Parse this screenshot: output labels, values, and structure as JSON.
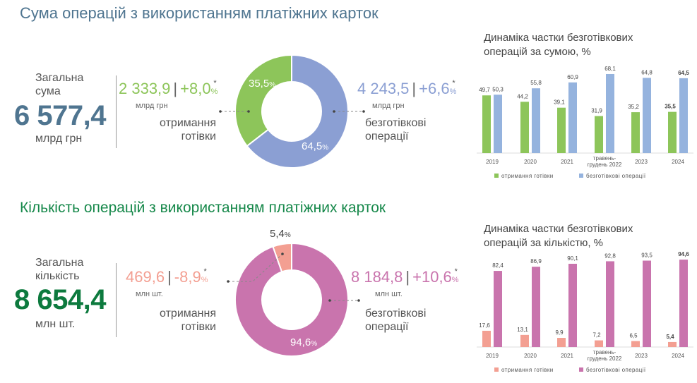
{
  "sum_section": {
    "title": "Сума операцій з використанням платіжних карток",
    "total_label_1": "Загальна",
    "total_label_2": "сума",
    "total_value": "6 577,4",
    "total_unit": "млрд грн",
    "cash": {
      "value": "2 333,9",
      "change": "+8,0",
      "pct": "%",
      "asterisk": "*",
      "unit": "млрд грн",
      "label_1": "отримання",
      "label_2": "готівки"
    },
    "cashless": {
      "value": "4 243,5",
      "change": "+6,6",
      "pct": "%",
      "asterisk": "*",
      "unit": "млрд грн",
      "label_1": "безготівкові",
      "label_2": "операції"
    }
  },
  "count_section": {
    "title": "Кількість операцій з використанням платіжних карток",
    "total_label_1": "Загальна",
    "total_label_2": "кількість",
    "total_value": "8 654,4",
    "total_unit": "млн шт.",
    "cash": {
      "value": "469,6",
      "change": "-8,9",
      "pct": "%",
      "asterisk": "*",
      "unit": "млн шт.",
      "label_1": "отримання",
      "label_2": "готівки"
    },
    "cashless": {
      "value": "8 184,8",
      "change": "+10,6",
      "pct": "%",
      "asterisk": "*",
      "unit": "млн шт.",
      "label_1": "безготівкові",
      "label_2": "операції"
    }
  },
  "colors": {
    "sum_title": "#4f7590",
    "count_title": "#16884a",
    "sum_total": "#4f7590",
    "count_total": "#0d7a3e",
    "green": "#8dc55a",
    "blue_donut": "#8b9fd3",
    "blue_bar": "#95b3de",
    "pink": "#c974ad",
    "salmon": "#f39f92"
  },
  "chart_data": [
    {
      "type": "pie",
      "donut": true,
      "slices": [
        {
          "label": "35,5%",
          "value": 35.5,
          "color": "#8dc55a"
        },
        {
          "label": "64,5%",
          "value": 64.5,
          "color": "#8b9fd3"
        }
      ]
    },
    {
      "type": "pie",
      "donut": true,
      "slices": [
        {
          "label": "5,4%",
          "value": 5.4,
          "color": "#f39f92"
        },
        {
          "label": "94,6%",
          "value": 94.6,
          "color": "#c974ad"
        }
      ]
    },
    {
      "type": "bar",
      "title_1": "Динаміка частки безготівкових",
      "title_2": "операцій за сумою, %",
      "categories": [
        "2019",
        "2020",
        "2021",
        "травень-|грудень 2022",
        "2023",
        "2024"
      ],
      "series": [
        {
          "name": "отримання готівки",
          "color": "#8dc55a",
          "values": [
            49.7,
            44.2,
            39.1,
            31.9,
            35.2,
            35.5
          ],
          "labels": [
            "49,7",
            "44,2",
            "39,1",
            "31,9",
            "35,2",
            "35,5"
          ]
        },
        {
          "name": "безготівкові операції",
          "color": "#95b3de",
          "values": [
            50.3,
            55.8,
            60.9,
            68.1,
            64.8,
            64.5
          ],
          "labels": [
            "50,3",
            "55,8",
            "60,9",
            "68,1",
            "64,8",
            "64,5"
          ]
        }
      ],
      "legend": "bottom"
    },
    {
      "type": "bar",
      "title_1": "Динаміка частки безготівкових",
      "title_2": "операцій за кількістю, %",
      "categories": [
        "2019",
        "2020",
        "2021",
        "травень-|грудень 2022",
        "2023",
        "2024"
      ],
      "series": [
        {
          "name": "отримання готівки",
          "color": "#f39f92",
          "values": [
            17.6,
            13.1,
            9.9,
            7.2,
            6.5,
            5.4
          ],
          "labels": [
            "17,6",
            "13,1",
            "9,9",
            "7,2",
            "6,5",
            "5,4"
          ]
        },
        {
          "name": "безготівкові операції",
          "color": "#c974ad",
          "values": [
            82.4,
            86.9,
            90.1,
            92.8,
            93.5,
            94.6
          ],
          "labels": [
            "82,4",
            "86,9",
            "90,1",
            "92,8",
            "93,5",
            "94,6"
          ]
        }
      ],
      "legend": "bottom"
    }
  ]
}
